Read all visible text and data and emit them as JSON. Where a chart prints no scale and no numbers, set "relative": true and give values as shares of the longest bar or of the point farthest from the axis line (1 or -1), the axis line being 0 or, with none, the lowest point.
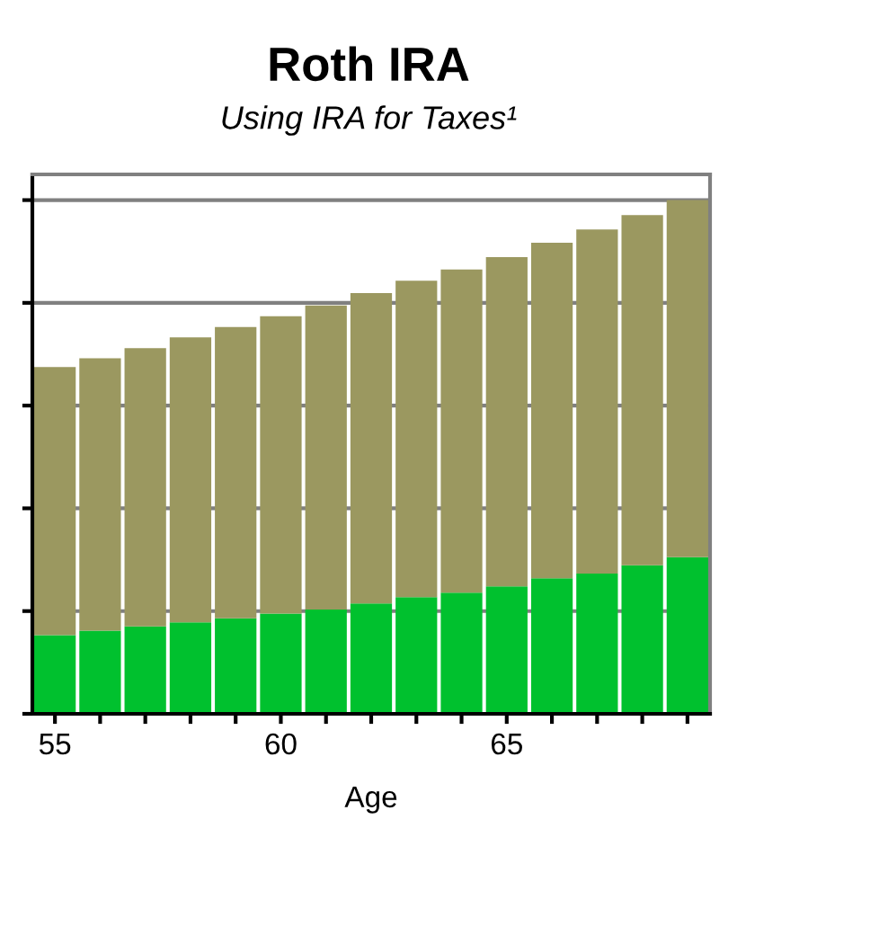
{
  "chart_data": {
    "type": "bar",
    "title": "Roth IRA",
    "subtitle": "Using IRA for Taxes¹",
    "xlabel": "Age",
    "relative": true,
    "stacked": true,
    "grid": "y",
    "legend": false,
    "categories": [
      "55",
      null,
      null,
      null,
      null,
      "60",
      null,
      null,
      null,
      null,
      "65",
      null,
      null,
      null,
      null
    ],
    "series": [
      {
        "color": "#00c12e",
        "values": [
          0.153,
          0.162,
          0.17,
          0.178,
          0.186,
          0.195,
          0.203,
          0.215,
          0.227,
          0.236,
          0.248,
          0.264,
          0.273,
          0.289,
          0.305
        ]
      },
      {
        "color": "#9b9860",
        "values": [
          0.522,
          0.53,
          0.542,
          0.555,
          0.567,
          0.579,
          0.592,
          0.604,
          0.616,
          0.629,
          0.641,
          0.653,
          0.67,
          0.682,
          0.695
        ]
      }
    ]
  }
}
